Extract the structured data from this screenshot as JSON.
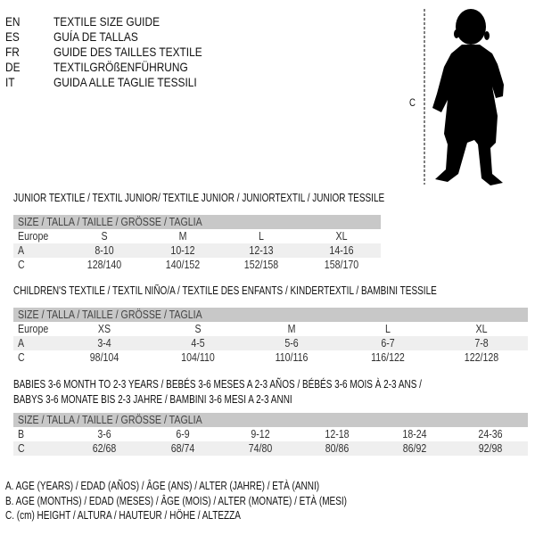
{
  "languages": [
    {
      "code": "EN",
      "title": "TEXTILE SIZE GUIDE"
    },
    {
      "code": "ES",
      "title": "GUÍA DE TALLAS"
    },
    {
      "code": "FR",
      "title": "GUIDE DES TAILLES TEXTILE"
    },
    {
      "code": "DE",
      "title": "TEXTILGRÖßENFÜHRUNG"
    },
    {
      "code": "IT",
      "title": "GUIDA ALLE TAGLIE TESSILI"
    }
  ],
  "figure": {
    "measure_label": "C"
  },
  "size_header": "SIZE / TALLA / TAILLE / GRÖSSE / TAGLIA",
  "junior": {
    "title": "JUNIOR TEXTILE / TEXTIL JUNIOR/ TEXTILE JUNIOR / JUNIORTEXTIL / JUNIOR TESSILE",
    "rows": [
      {
        "label": "Europe",
        "values": [
          "S",
          "M",
          "L",
          "XL"
        ]
      },
      {
        "label": "A",
        "values": [
          "8-10",
          "10-12",
          "12-13",
          "14-16"
        ]
      },
      {
        "label": "C",
        "values": [
          "128/140",
          "140/152",
          "152/158",
          "158/170"
        ]
      }
    ]
  },
  "children": {
    "title": "CHILDREN'S TEXTILE / TEXTIL NIÑO/A / TEXTILE DES ENFANTS / KINDERTEXTIL / BAMBINI TESSILE",
    "rows": [
      {
        "label": "Europe",
        "values": [
          "XS",
          "S",
          "M",
          "L",
          "XL"
        ]
      },
      {
        "label": "A",
        "values": [
          "3-4",
          "4-5",
          "5-6",
          "6-7",
          "7-8"
        ]
      },
      {
        "label": "C",
        "values": [
          "98/104",
          "104/110",
          "110/116",
          "116/122",
          "122/128"
        ]
      }
    ]
  },
  "babies": {
    "title_line1": "BABIES 3-6 MONTH TO 2-3 YEARS / BEBÉS 3-6 MESES A 2-3 AÑOS / BÉBÉS 3-6 MOIS À 2-3 ANS /",
    "title_line2": "BABYS 3-6 MONATE BIS 2-3 JAHRE / BAMBINI 3-6 MESI A 2-3 ANNI",
    "rows": [
      {
        "label": "B",
        "values": [
          "3-6",
          "6-9",
          "9-12",
          "12-18",
          "18-24",
          "24-36"
        ]
      },
      {
        "label": "C",
        "values": [
          "62/68",
          "68/74",
          "74/80",
          "80/86",
          "86/92",
          "92/98"
        ]
      }
    ]
  },
  "legend": [
    "A. AGE (YEARS) / EDAD (AÑOS) / ÂGE (ANS) / ALTER (JAHRE) / ETÀ (ANNI)",
    "B. AGE (MONTHS) / EDAD (MESES) / ÂGE (MOIS) / ALTER (MONATE) / ETÀ (MESI)",
    "C. (cm) HEIGHT / ALTURA / HAUTEUR / HÖHE / ALTEZZA"
  ]
}
